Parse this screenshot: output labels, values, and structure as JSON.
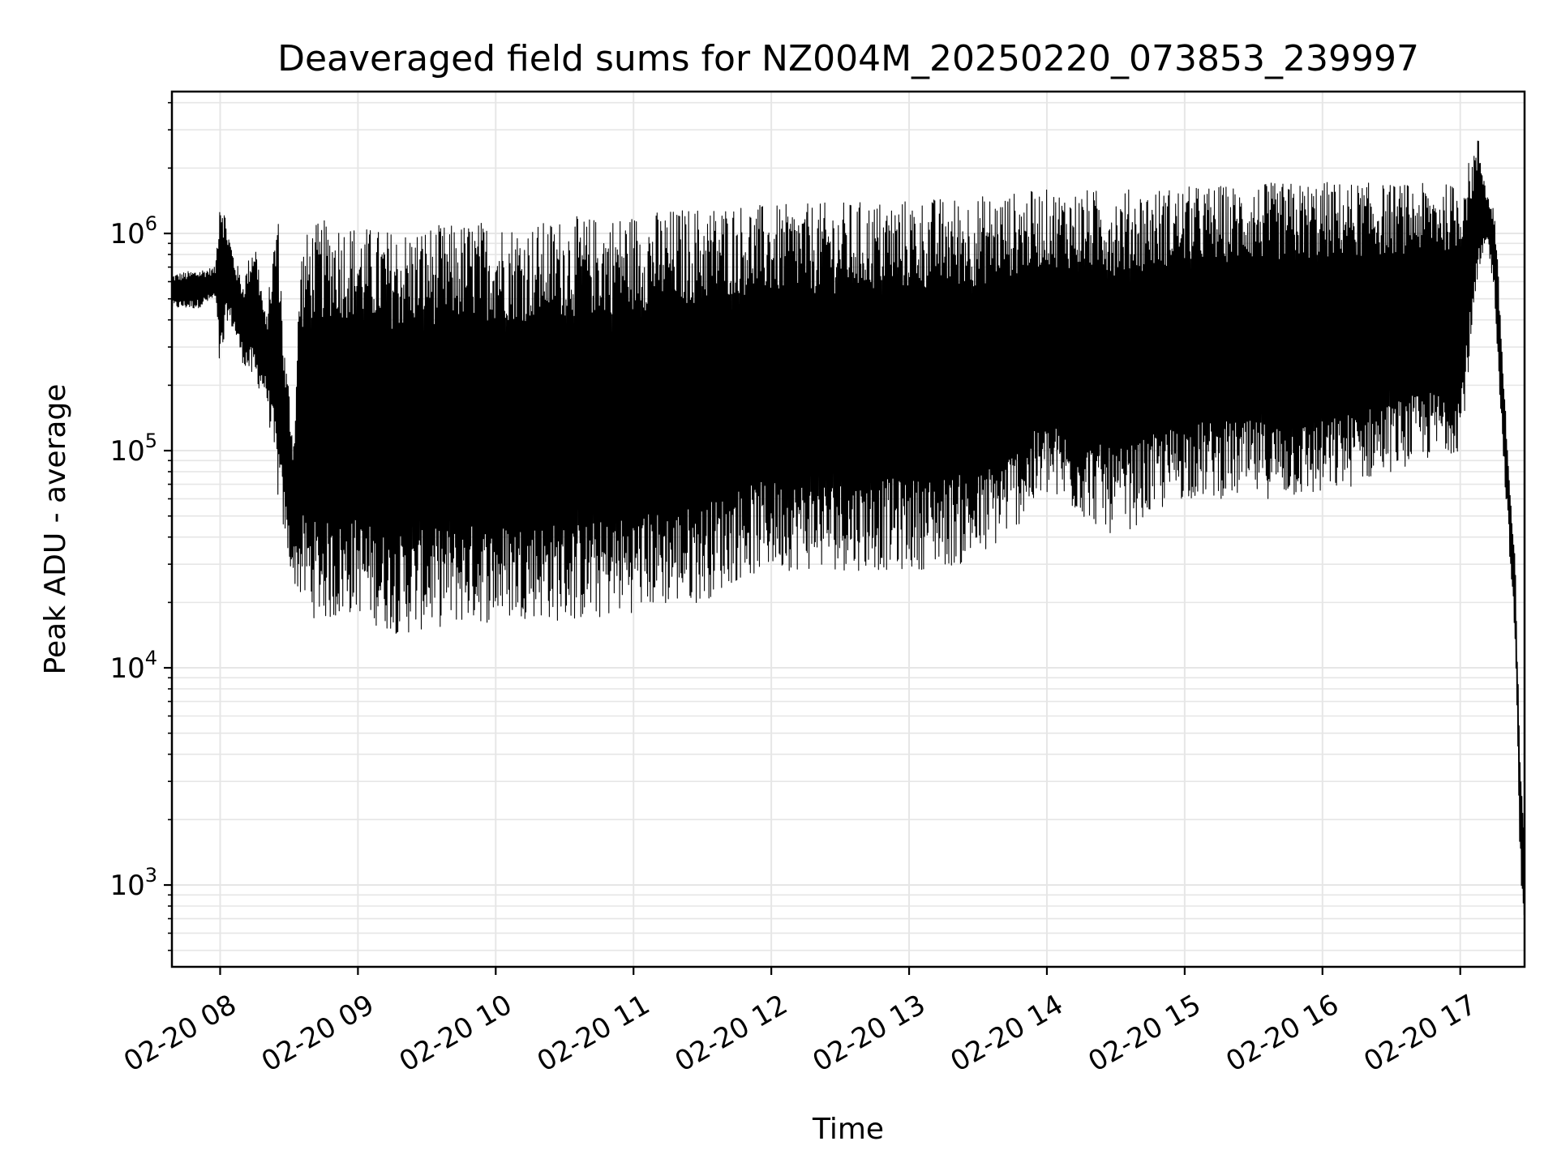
{
  "chart_data": {
    "type": "line",
    "title": "Deaveraged field sums for NZ004M_20250220_073853_239997",
    "xlabel": "Time",
    "ylabel": "Peak ADU - average",
    "yscale": "log",
    "ylim": [
      420,
      4500000
    ],
    "xlim": [
      "02-20 07:39",
      "02-20 17:28"
    ],
    "grid": true,
    "line_color": "#000000",
    "x_ticks": [
      "02-20 08",
      "02-20 09",
      "02-20 10",
      "02-20 11",
      "02-20 12",
      "02-20 13",
      "02-20 14",
      "02-20 15",
      "02-20 16",
      "02-20 17"
    ],
    "y_ticks": [
      {
        "base": "10",
        "exp": "3",
        "value": 1000
      },
      {
        "base": "10",
        "exp": "4",
        "value": 10000
      },
      {
        "base": "10",
        "exp": "5",
        "value": 100000
      },
      {
        "base": "10",
        "exp": "6",
        "value": 1000000
      }
    ],
    "series": [
      {
        "x": [
          "02-20 07:39",
          "02-20 07:50",
          "02-20 07:58",
          "02-20 08:00",
          "02-20 08:03",
          "02-20 08:06",
          "02-20 08:10",
          "02-20 08:15",
          "02-20 08:20",
          "02-20 08:25",
          "02-20 08:28",
          "02-20 08:30",
          "02-20 08:32",
          "02-20 08:35",
          "02-20 08:40",
          "02-20 08:50",
          "02-20 09:00",
          "02-20 09:10",
          "02-20 09:20",
          "02-20 09:30",
          "02-20 09:40",
          "02-20 09:50",
          "02-20 10:00",
          "02-20 10:15",
          "02-20 10:30",
          "02-20 10:45",
          "02-20 11:00",
          "02-20 11:15",
          "02-20 11:30",
          "02-20 11:45",
          "02-20 12:00",
          "02-20 12:30",
          "02-20 13:00",
          "02-20 13:30",
          "02-20 14:00",
          "02-20 14:30",
          "02-20 15:00",
          "02-20 15:30",
          "02-20 16:00",
          "02-20 16:30",
          "02-20 17:00",
          "02-20 17:08",
          "02-20 17:12",
          "02-20 17:15",
          "02-20 17:18",
          "02-20 17:21",
          "02-20 17:24",
          "02-20 17:26",
          "02-20 17:28"
        ],
        "upper": [
          650000,
          680000,
          700000,
          1800000,
          1100000,
          800000,
          600000,
          1000000,
          400000,
          1400000,
          300000,
          200000,
          120000,
          900000,
          1100000,
          1200000,
          1100000,
          1050000,
          1050000,
          1100000,
          1100000,
          1150000,
          1150000,
          1100000,
          1200000,
          1200000,
          1250000,
          1300000,
          1350000,
          1400000,
          1350000,
          1400000,
          1450000,
          1500000,
          1600000,
          1600000,
          1650000,
          1700000,
          1750000,
          1700000,
          1700000,
          2800000,
          1500000,
          1300000,
          350000,
          90000,
          30000,
          4000,
          2000
        ],
        "lower": [
          450000,
          450000,
          500000,
          200000,
          400000,
          350000,
          250000,
          200000,
          180000,
          60000,
          40000,
          30000,
          25000,
          20000,
          17000,
          16000,
          18000,
          15000,
          14000,
          15000,
          15500,
          16000,
          16000,
          17000,
          16000,
          16500,
          18000,
          19000,
          20000,
          25000,
          28000,
          28000,
          28000,
          30000,
          60000,
          40000,
          60000,
          60000,
          60000,
          80000,
          100000,
          600000,
          900000,
          500000,
          120000,
          40000,
          12000,
          1200,
          650
        ]
      }
    ]
  }
}
